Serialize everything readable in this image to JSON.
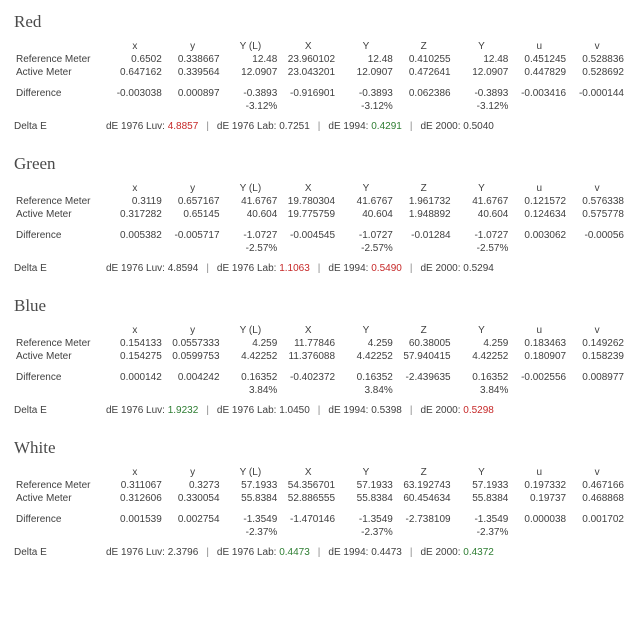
{
  "row_labels": {
    "ref": "Reference Meter",
    "act": "Active Meter",
    "diff": "Difference",
    "de": "Delta E"
  },
  "col_headers": [
    "x",
    "y",
    "Y (L)",
    "X",
    "Y",
    "Z",
    "Y",
    "u",
    "v"
  ],
  "de_labels": {
    "l76luv": "dE 1976 Luv:",
    "l76lab": "dE 1976 Lab:",
    "l1994": "dE 1994:",
    "l2000": "dE 2000:"
  },
  "sections": [
    {
      "title": "Red",
      "ref": [
        "0.6502",
        "0.338667",
        "12.48",
        "23.960102",
        "12.48",
        "0.410255",
        "12.48",
        "0.451245",
        "0.528836"
      ],
      "act": [
        "0.647162",
        "0.339564",
        "12.0907",
        "23.043201",
        "12.0907",
        "0.472641",
        "12.0907",
        "0.447829",
        "0.528692"
      ],
      "diff": [
        "-0.003038",
        "0.000897",
        "-0.3893",
        "-0.916901",
        "-0.3893",
        "0.062386",
        "-0.3893",
        "-0.003416",
        "-0.000144"
      ],
      "pct": [
        "",
        "",
        "-3.12%",
        "",
        "-3.12%",
        "",
        "-3.12%",
        "",
        ""
      ],
      "de": {
        "l76luv": {
          "v": "4.8857",
          "hl": "red"
        },
        "l76lab": {
          "v": "0.7251",
          "hl": ""
        },
        "l1994": {
          "v": "0.4291",
          "hl": "green"
        },
        "l2000": {
          "v": "0.5040",
          "hl": ""
        }
      }
    },
    {
      "title": "Green",
      "ref": [
        "0.3119",
        "0.657167",
        "41.6767",
        "19.780304",
        "41.6767",
        "1.961732",
        "41.6767",
        "0.121572",
        "0.576338"
      ],
      "act": [
        "0.317282",
        "0.65145",
        "40.604",
        "19.775759",
        "40.604",
        "1.948892",
        "40.604",
        "0.124634",
        "0.575778"
      ],
      "diff": [
        "0.005382",
        "-0.005717",
        "-1.0727",
        "-0.004545",
        "-1.0727",
        "-0.01284",
        "-1.0727",
        "0.003062",
        "-0.00056"
      ],
      "pct": [
        "",
        "",
        "-2.57%",
        "",
        "-2.57%",
        "",
        "-2.57%",
        "",
        ""
      ],
      "de": {
        "l76luv": {
          "v": "4.8594",
          "hl": ""
        },
        "l76lab": {
          "v": "1.1063",
          "hl": "red"
        },
        "l1994": {
          "v": "0.5490",
          "hl": "red"
        },
        "l2000": {
          "v": "0.5294",
          "hl": ""
        }
      }
    },
    {
      "title": "Blue",
      "ref": [
        "0.154133",
        "0.0557333",
        "4.259",
        "11.77846",
        "4.259",
        "60.38005",
        "4.259",
        "0.183463",
        "0.149262"
      ],
      "act": [
        "0.154275",
        "0.0599753",
        "4.42252",
        "11.376088",
        "4.42252",
        "57.940415",
        "4.42252",
        "0.180907",
        "0.158239"
      ],
      "diff": [
        "0.000142",
        "0.004242",
        "0.16352",
        "-0.402372",
        "0.16352",
        "-2.439635",
        "0.16352",
        "-0.002556",
        "0.008977"
      ],
      "pct": [
        "",
        "",
        "3.84%",
        "",
        "3.84%",
        "",
        "3.84%",
        "",
        ""
      ],
      "de": {
        "l76luv": {
          "v": "1.9232",
          "hl": "green"
        },
        "l76lab": {
          "v": "1.0450",
          "hl": ""
        },
        "l1994": {
          "v": "0.5398",
          "hl": ""
        },
        "l2000": {
          "v": "0.5298",
          "hl": "red"
        }
      }
    },
    {
      "title": "White",
      "ref": [
        "0.311067",
        "0.3273",
        "57.1933",
        "54.356701",
        "57.1933",
        "63.192743",
        "57.1933",
        "0.197332",
        "0.467166"
      ],
      "act": [
        "0.312606",
        "0.330054",
        "55.8384",
        "52.886555",
        "55.8384",
        "60.454634",
        "55.8384",
        "0.19737",
        "0.468868"
      ],
      "diff": [
        "0.001539",
        "0.002754",
        "-1.3549",
        "-1.470146",
        "-1.3549",
        "-2.738109",
        "-1.3549",
        "0.000038",
        "0.001702"
      ],
      "pct": [
        "",
        "",
        "-2.37%",
        "",
        "-2.37%",
        "",
        "-2.37%",
        "",
        ""
      ],
      "de": {
        "l76luv": {
          "v": "2.3796",
          "hl": ""
        },
        "l76lab": {
          "v": "0.4473",
          "hl": "green"
        },
        "l1994": {
          "v": "0.4473",
          "hl": ""
        },
        "l2000": {
          "v": "0.4372",
          "hl": "green"
        }
      }
    }
  ]
}
